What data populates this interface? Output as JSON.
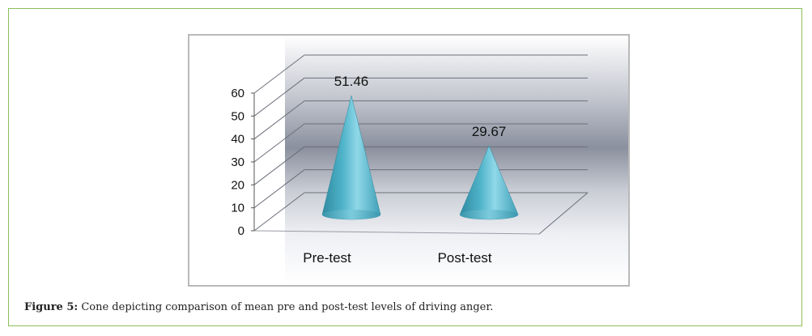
{
  "chart_data": {
    "type": "bar",
    "mark": "cone",
    "categories": [
      "Pre-test",
      "Post-test"
    ],
    "values": [
      51.46,
      29.67
    ],
    "data_labels": [
      "51.46",
      "29.67"
    ],
    "ylim": [
      0,
      60
    ],
    "yticks": [
      "0",
      "10",
      "20",
      "30",
      "40",
      "50",
      "60"
    ],
    "title": "",
    "xlabel": "",
    "ylabel": "",
    "grid": true,
    "legend": "none",
    "colors": {
      "cone": "#4fb3c9",
      "cone_light": "#8fd8e8",
      "cone_dark": "#2f8aa0",
      "plot_bg_dark": "#7f8696"
    }
  },
  "caption": {
    "label": "Figure 5:",
    "text": " Cone depicting comparison of mean pre and post-test levels of driving anger."
  }
}
